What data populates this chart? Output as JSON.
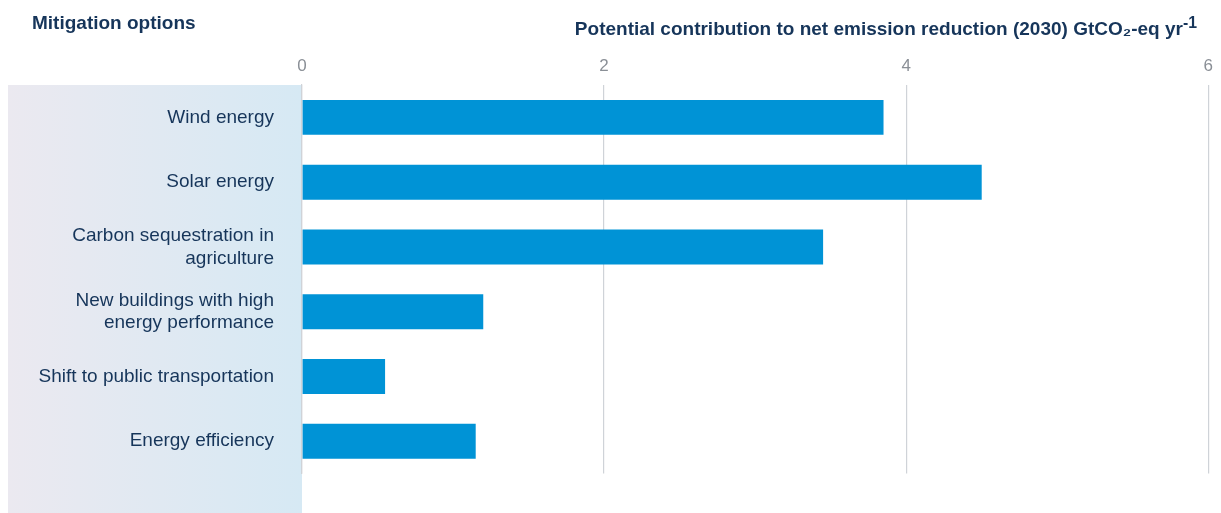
{
  "chart_data": {
    "type": "bar",
    "orientation": "horizontal",
    "ylabel": "Mitigation options",
    "xlabel": "Potential contribution to net emission reduction (2030) GtCO₂-eq yr$^{-1}$",
    "categories": [
      "Wind energy",
      "Solar energy",
      "Carbon sequestration in agriculture",
      "New buildings with high energy performance",
      "Shift to public transportation",
      "Energy efficiency"
    ],
    "values": [
      3.85,
      4.5,
      3.45,
      1.2,
      0.55,
      1.15
    ],
    "color": "#0093d6",
    "xlim": [
      0,
      6
    ],
    "xticks": [
      0,
      2,
      4,
      6
    ],
    "grid": "x",
    "legend": false
  }
}
